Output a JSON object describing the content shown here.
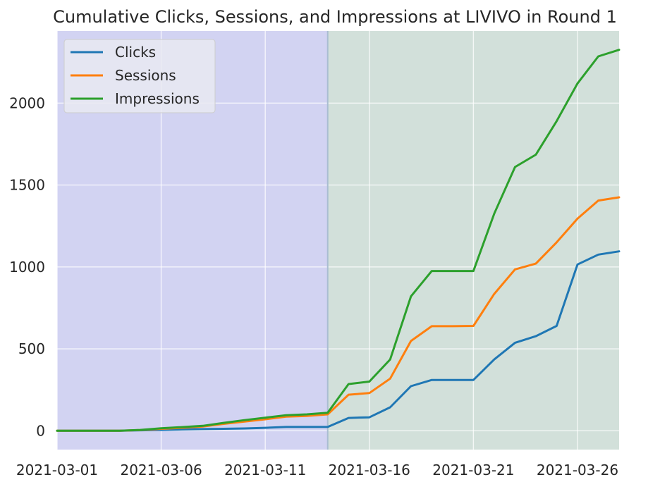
{
  "chart_data": {
    "type": "line",
    "title": "Cumulative Clicks, Sessions, and Impressions at LIVIVO in Round 1",
    "xlabel": "",
    "ylabel": "",
    "x": [
      "2021-03-01",
      "2021-03-02",
      "2021-03-03",
      "2021-03-04",
      "2021-03-05",
      "2021-03-06",
      "2021-03-07",
      "2021-03-08",
      "2021-03-09",
      "2021-03-10",
      "2021-03-11",
      "2021-03-12",
      "2021-03-13",
      "2021-03-14",
      "2021-03-15",
      "2021-03-16",
      "2021-03-17",
      "2021-03-18",
      "2021-03-19",
      "2021-03-20",
      "2021-03-21",
      "2021-03-22",
      "2021-03-23",
      "2021-03-24",
      "2021-03-25",
      "2021-03-26",
      "2021-03-27",
      "2021-03-28"
    ],
    "x_ticks": [
      "2021-03-01",
      "2021-03-06",
      "2021-03-11",
      "2021-03-16",
      "2021-03-21",
      "2021-03-26"
    ],
    "xlim": [
      "2021-03-01",
      "2021-03-28"
    ],
    "y_ticks": [
      0,
      500,
      1000,
      1500,
      2000
    ],
    "ylim": [
      -115,
      2440
    ],
    "grid": true,
    "legend_position": "top-left",
    "shaded_regions": [
      {
        "from": "2021-03-01",
        "to": "2021-03-14",
        "color": "#d2d3f2"
      },
      {
        "from": "2021-03-14",
        "to": "2021-03-28",
        "color": "#d2e0da"
      }
    ],
    "series": [
      {
        "name": "Clicks",
        "color": "#1f77b4",
        "values": [
          0,
          0,
          0,
          0,
          3,
          5,
          8,
          10,
          12,
          14,
          18,
          23,
          23,
          23,
          78,
          82,
          143,
          272,
          310,
          310,
          310,
          435,
          537,
          577,
          640,
          1015,
          1075,
          1095
        ]
      },
      {
        "name": "Sessions",
        "color": "#ff7f0e",
        "values": [
          0,
          0,
          0,
          0,
          4,
          12,
          18,
          26,
          42,
          56,
          70,
          86,
          90,
          100,
          220,
          230,
          318,
          548,
          638,
          638,
          640,
          835,
          985,
          1020,
          1150,
          1295,
          1405,
          1425
        ]
      },
      {
        "name": "Impressions",
        "color": "#2ca02c",
        "values": [
          0,
          0,
          0,
          0,
          5,
          15,
          22,
          30,
          48,
          65,
          80,
          95,
          100,
          110,
          285,
          300,
          435,
          820,
          975,
          975,
          975,
          1325,
          1610,
          1685,
          1890,
          2120,
          2285,
          2325
        ]
      }
    ]
  }
}
